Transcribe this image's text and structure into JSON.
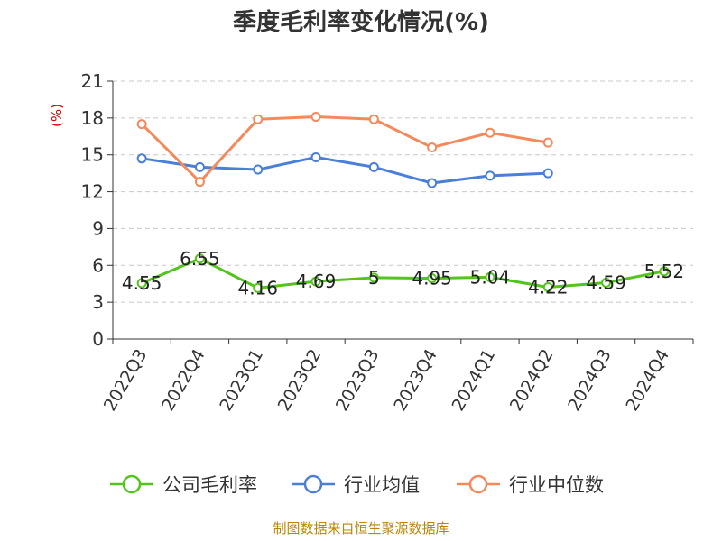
{
  "chart_data": {
    "type": "line",
    "title": "季度毛利率变化情况(%)",
    "ylabel": "(%)",
    "xlabel": "",
    "categories": [
      "2022Q3",
      "2022Q4",
      "2023Q1",
      "2023Q2",
      "2023Q3",
      "2023Q4",
      "2024Q1",
      "2024Q2",
      "2024Q3",
      "2024Q4"
    ],
    "yticks": [
      "0",
      "3",
      "6",
      "9",
      "12",
      "15",
      "18",
      "21"
    ],
    "ylim": [
      0,
      21
    ],
    "grid": true,
    "legend_position": "bottom",
    "series": [
      {
        "name": "公司毛利率",
        "color": "#52c41a",
        "values": [
          4.55,
          6.55,
          4.16,
          4.69,
          5,
          4.95,
          5.04,
          4.22,
          4.59,
          5.52
        ],
        "labels": [
          "4.55",
          "6.55",
          "4.16",
          "4.69",
          "5",
          "4.95",
          "5.04",
          "4.22",
          "4.59",
          "5.52"
        ]
      },
      {
        "name": "行业均值",
        "color": "#4a7fd8",
        "values": [
          14.7,
          14.0,
          13.8,
          14.8,
          14.0,
          12.7,
          13.3,
          13.5,
          null,
          null
        ]
      },
      {
        "name": "行业中位数",
        "color": "#f4895c",
        "values": [
          17.5,
          12.8,
          17.9,
          18.1,
          17.9,
          15.6,
          16.8,
          16.0,
          null,
          null
        ]
      }
    ],
    "source": "制图数据来自恒生聚源数据库"
  }
}
